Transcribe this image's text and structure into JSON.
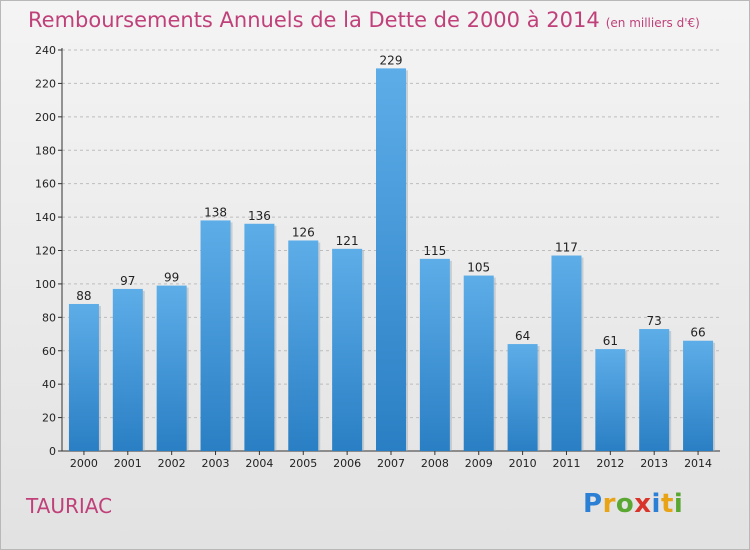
{
  "title": "Remboursements Annuels de la Dette de 2000 à 2014",
  "unit_note": "(en milliers d'€)",
  "commune": "TAURIAC",
  "logo": {
    "text": "Proxiti",
    "letters": [
      {
        "ch": "P",
        "color": "#2b7fd4"
      },
      {
        "ch": "r",
        "color": "#e8a317"
      },
      {
        "ch": "o",
        "color": "#5aa832"
      },
      {
        "ch": "x",
        "color": "#d9342b"
      },
      {
        "ch": "i",
        "color": "#2b7fd4"
      },
      {
        "ch": "t",
        "color": "#e8a317"
      },
      {
        "ch": "i",
        "color": "#5aa832"
      }
    ]
  },
  "colors": {
    "bar_top": "#5dade8",
    "bar_bottom": "#2a7fc4",
    "grid": "#bdbdbd",
    "title": "#c0407a"
  },
  "chart_data": {
    "type": "bar",
    "categories": [
      "2000",
      "2001",
      "2002",
      "2003",
      "2004",
      "2005",
      "2006",
      "2007",
      "2008",
      "2009",
      "2010",
      "2011",
      "2012",
      "2013",
      "2014"
    ],
    "values": [
      88,
      97,
      99,
      138,
      136,
      126,
      121,
      229,
      115,
      105,
      64,
      117,
      61,
      73,
      66
    ],
    "ylim": [
      0,
      240
    ],
    "yticks": [
      0,
      20,
      40,
      60,
      80,
      100,
      120,
      140,
      160,
      180,
      200,
      220,
      240
    ],
    "grid": true,
    "data_labels": true
  }
}
